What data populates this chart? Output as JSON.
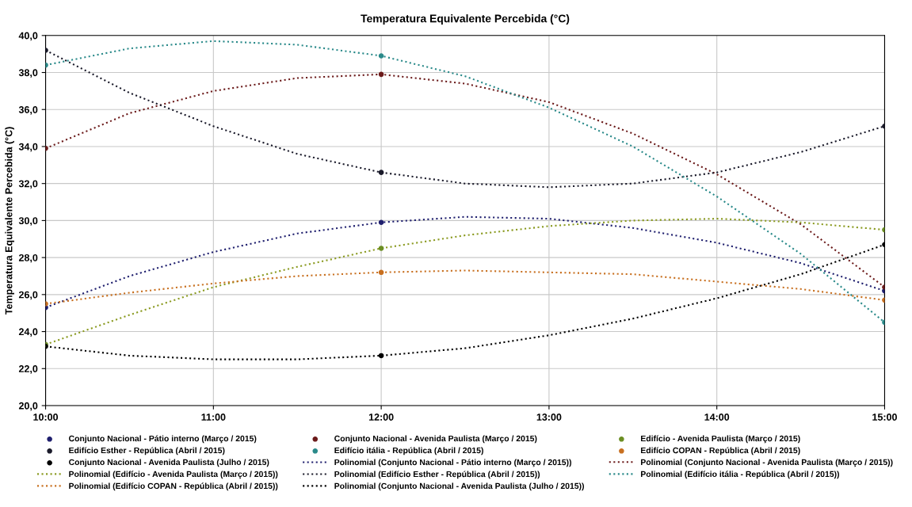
{
  "chart_data": {
    "type": "scatter",
    "title": "Temperatura Equivalente Percebida (°C)",
    "ylabel": "Temperatura Equivalente Percebida (°C)",
    "x": [
      10,
      12,
      15
    ],
    "xlim": [
      10,
      15
    ],
    "xticks": [
      {
        "value": 10,
        "label": "10:00"
      },
      {
        "value": 11,
        "label": "11:00"
      },
      {
        "value": 12,
        "label": "12:00"
      },
      {
        "value": 13,
        "label": "13:00"
      },
      {
        "value": 14,
        "label": "14:00"
      },
      {
        "value": 15,
        "label": "15:00"
      }
    ],
    "ylim": [
      20,
      40
    ],
    "yticks": [
      {
        "value": 20,
        "label": "20,0"
      },
      {
        "value": 22,
        "label": "22,0"
      },
      {
        "value": 24,
        "label": "24,0"
      },
      {
        "value": 26,
        "label": "26,0"
      },
      {
        "value": 28,
        "label": "28,0"
      },
      {
        "value": 30,
        "label": "30,0"
      },
      {
        "value": 32,
        "label": "32,0"
      },
      {
        "value": 34,
        "label": "34,0"
      },
      {
        "value": 36,
        "label": "36,0"
      },
      {
        "value": 38,
        "label": "38,0"
      },
      {
        "value": 40,
        "label": "40,0"
      }
    ],
    "grid": true,
    "legend": "bottom",
    "marker": "circle",
    "series": [
      {
        "name": "Conjunto Nacional - Pátio interno (Março / 2015)",
        "color": "#1f1f6e",
        "values": [
          25.3,
          29.9,
          26.2
        ]
      },
      {
        "name": "Conjunto Nacional - Avenida Paulista (Março / 2015)",
        "color": "#6b1a1a",
        "values": [
          33.9,
          37.9,
          26.4
        ]
      },
      {
        "name": "Edifício - Avenida Paulista (Março / 2015)",
        "color": "#6b8e23",
        "values": [
          23.3,
          28.5,
          29.5
        ]
      },
      {
        "name": "Edifício Esther - República (Abril / 2015)",
        "color": "#1a1a2a",
        "values": [
          39.2,
          32.6,
          35.1
        ]
      },
      {
        "name": "Edifício itália - República (Abril / 2015)",
        "color": "#2a8a8a",
        "values": [
          38.4,
          38.9,
          24.5
        ]
      },
      {
        "name": "Edifício COPAN - República (Abril / 2015)",
        "color": "#c87020",
        "values": [
          25.5,
          27.2,
          25.7
        ]
      },
      {
        "name": "Conjunto Nacional - Avenida Paulista (Julho / 2015)",
        "color": "#000000",
        "values": [
          23.2,
          22.7,
          28.7
        ]
      },
      {
        "type": "line",
        "line_style": "dotted",
        "marker": "none",
        "name": "Polinomial (Conjunto Nacional - Pátio interno (Março / 2015))",
        "color": "#1f1f6e",
        "x": [
          10,
          10.5,
          11,
          11.5,
          12,
          12.5,
          13,
          13.5,
          14,
          14.5,
          15
        ],
        "values": [
          25.3,
          27.0,
          28.3,
          29.3,
          29.9,
          30.2,
          30.1,
          29.6,
          28.8,
          27.7,
          26.2
        ]
      },
      {
        "type": "line",
        "line_style": "dotted",
        "marker": "none",
        "name": "Polinomial (Conjunto Nacional - Avenida Paulista (Março / 2015))",
        "color": "#6b1a1a",
        "x": [
          10,
          10.5,
          11,
          11.5,
          12,
          12.5,
          13,
          13.5,
          14,
          14.5,
          15
        ],
        "values": [
          33.9,
          35.8,
          37.0,
          37.7,
          37.9,
          37.4,
          36.4,
          34.7,
          32.5,
          29.8,
          26.4
        ]
      },
      {
        "type": "line",
        "line_style": "dotted",
        "marker": "none",
        "name": "Polinomial (Edifício - Avenida Paulista (Março / 2015))",
        "color": "#8a9a20",
        "x": [
          10,
          10.5,
          11,
          11.5,
          12,
          12.5,
          13,
          13.5,
          14,
          14.5,
          15
        ],
        "values": [
          23.3,
          24.9,
          26.4,
          27.5,
          28.5,
          29.2,
          29.7,
          30.0,
          30.1,
          29.9,
          29.5
        ]
      },
      {
        "type": "line",
        "line_style": "dotted",
        "marker": "none",
        "name": "Polinomial (Edifício Esther - República (Abril / 2015))",
        "color": "#1a1a2a",
        "x": [
          10,
          10.5,
          11,
          11.5,
          12,
          12.5,
          13,
          13.5,
          14,
          14.5,
          15
        ],
        "values": [
          39.2,
          36.9,
          35.1,
          33.6,
          32.6,
          32.0,
          31.8,
          32.0,
          32.6,
          33.7,
          35.1
        ]
      },
      {
        "type": "line",
        "line_style": "dotted",
        "marker": "none",
        "name": "Polinomial (Edifício itália - República (Abril / 2015))",
        "color": "#2a8a8a",
        "x": [
          10,
          10.5,
          11,
          11.5,
          12,
          12.5,
          13,
          13.5,
          14,
          14.5,
          15
        ],
        "values": [
          38.4,
          39.3,
          39.7,
          39.5,
          38.9,
          37.8,
          36.1,
          34.0,
          31.3,
          28.2,
          24.5
        ]
      },
      {
        "type": "line",
        "line_style": "dotted",
        "marker": "none",
        "name": "Polinomial (Edifício COPAN - República (Abril / 2015))",
        "color": "#c87020",
        "x": [
          10,
          10.5,
          11,
          11.5,
          12,
          12.5,
          13,
          13.5,
          14,
          14.5,
          15
        ],
        "values": [
          25.5,
          26.1,
          26.6,
          27.0,
          27.2,
          27.3,
          27.2,
          27.1,
          26.7,
          26.3,
          25.7
        ]
      },
      {
        "type": "line",
        "line_style": "dotted",
        "marker": "none",
        "name": "Polinomial (Conjunto Nacional - Avenida Paulista (Julho / 2015))",
        "color": "#000000",
        "x": [
          10,
          10.5,
          11,
          11.5,
          12,
          12.5,
          13,
          13.5,
          14,
          14.5,
          15
        ],
        "values": [
          23.2,
          22.7,
          22.5,
          22.5,
          22.7,
          23.1,
          23.8,
          24.7,
          25.8,
          27.1,
          28.7
        ]
      }
    ]
  }
}
